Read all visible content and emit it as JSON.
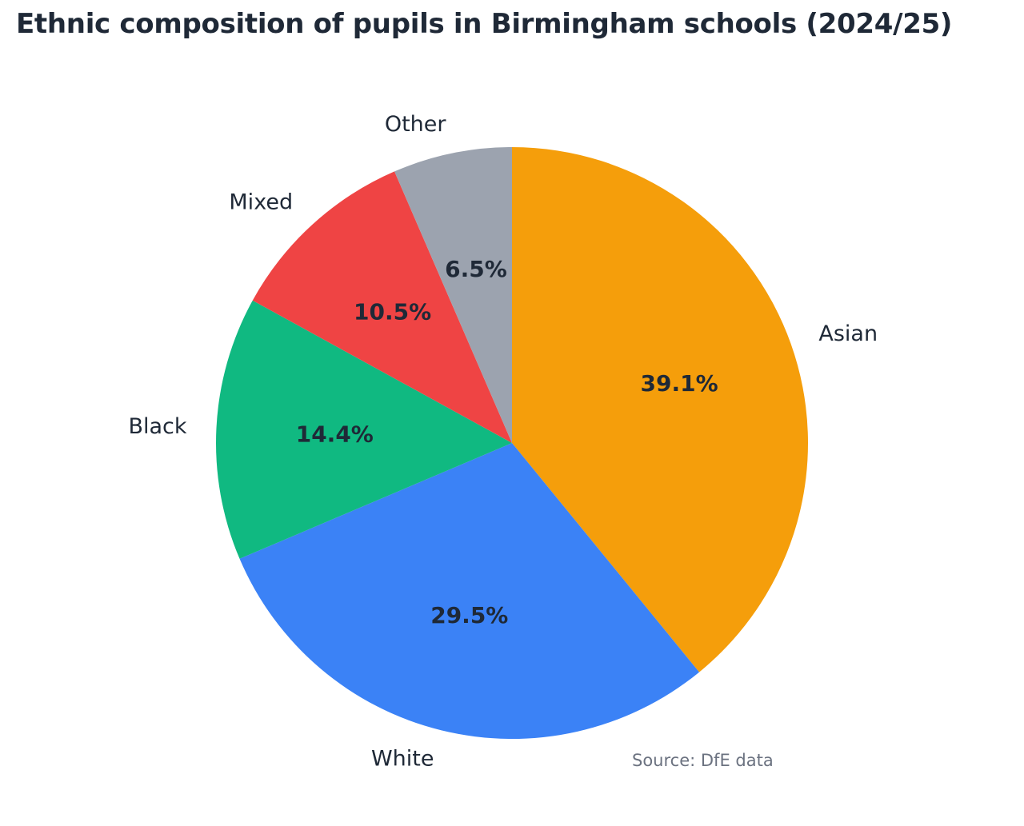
{
  "title": "Ethnic composition of pupils in Birmingham schools (2024/25)",
  "source_note": "Source: DfE data",
  "colors": {
    "title_text": "#1f2937",
    "label_text": "#1f2937",
    "source_text": "#6b7280",
    "background": "#ffffff"
  },
  "chart_data": {
    "type": "pie",
    "title": "Ethnic composition of pupils in Birmingham schools (2024/25)",
    "categories": [
      "Asian",
      "White",
      "Black",
      "Mixed",
      "Other"
    ],
    "values": [
      39.1,
      29.5,
      14.4,
      10.5,
      6.5
    ],
    "value_labels": [
      "39.1%",
      "29.5%",
      "14.4%",
      "10.5%",
      "6.5%"
    ],
    "slice_colors": [
      "#f59e0b",
      "#3b82f6",
      "#10b981",
      "#ef4444",
      "#9ca3af"
    ],
    "unit": "percent",
    "start_angle": "12 o'clock",
    "direction": "clockwise",
    "legend": "none (direct slice labels outside pie)",
    "annotation": "Source: DfE data"
  }
}
